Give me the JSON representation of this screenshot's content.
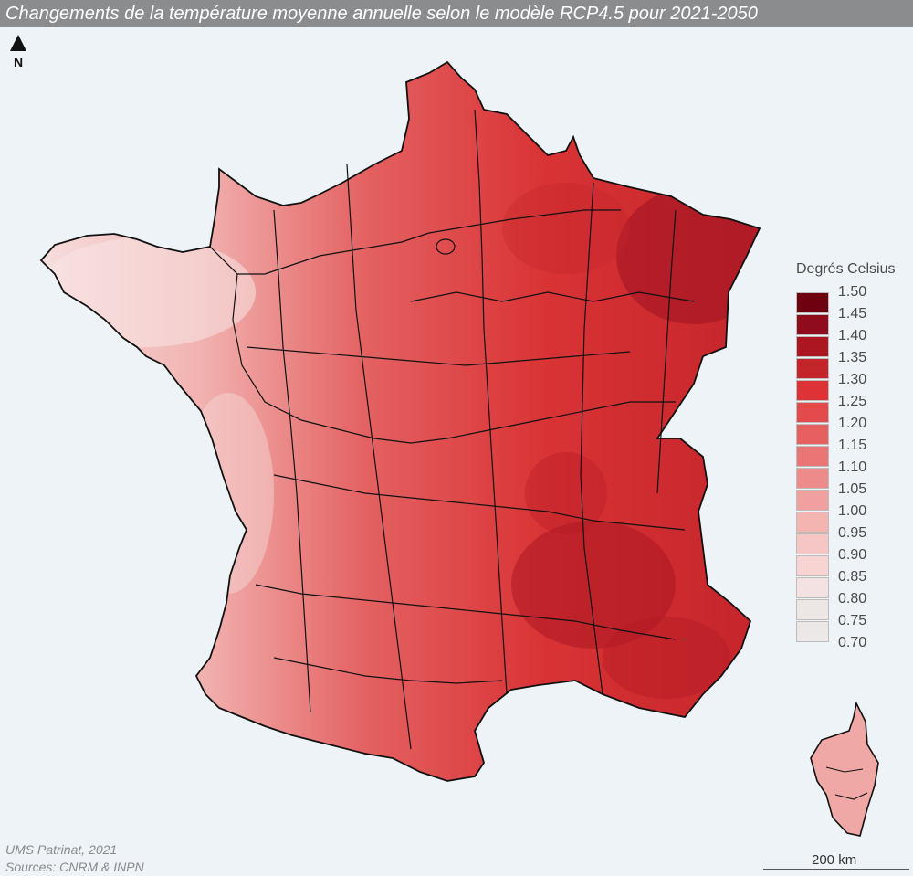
{
  "title": "Changements de la température moyenne annuelle selon le modèle RCP4.5 pour 2021-2050",
  "north_label": "N",
  "north_icon": "north-arrow-icon",
  "legend": {
    "title": "Degrés Celsius",
    "labels": [
      "1.50",
      "1.45",
      "1.40",
      "1.35",
      "1.30",
      "1.25",
      "1.20",
      "1.15",
      "1.10",
      "1.05",
      "1.00",
      "0.95",
      "0.90",
      "0.85",
      "0.80",
      "0.75",
      "0.70"
    ],
    "bin_colors": [
      "#6e0010",
      "#8e0c1c",
      "#ab1621",
      "#c4252b",
      "#dd3337",
      "#e24a4b",
      "#e6605f",
      "#e97675",
      "#ec8b89",
      "#f0a19f",
      "#f3b4b2",
      "#f6c6c4",
      "#f7d4d2",
      "#f3e2e1",
      "#ece6e5",
      "#ebe8e7"
    ]
  },
  "credits": {
    "line1": "UMS Patrinat, 2021",
    "line2": "Sources: CNRM & INPN"
  },
  "scale_bar": {
    "label": "200 km"
  },
  "colors": {
    "background": "#edf3f6",
    "title_bar": "#8a8c8e",
    "boundary": "#111111"
  }
}
